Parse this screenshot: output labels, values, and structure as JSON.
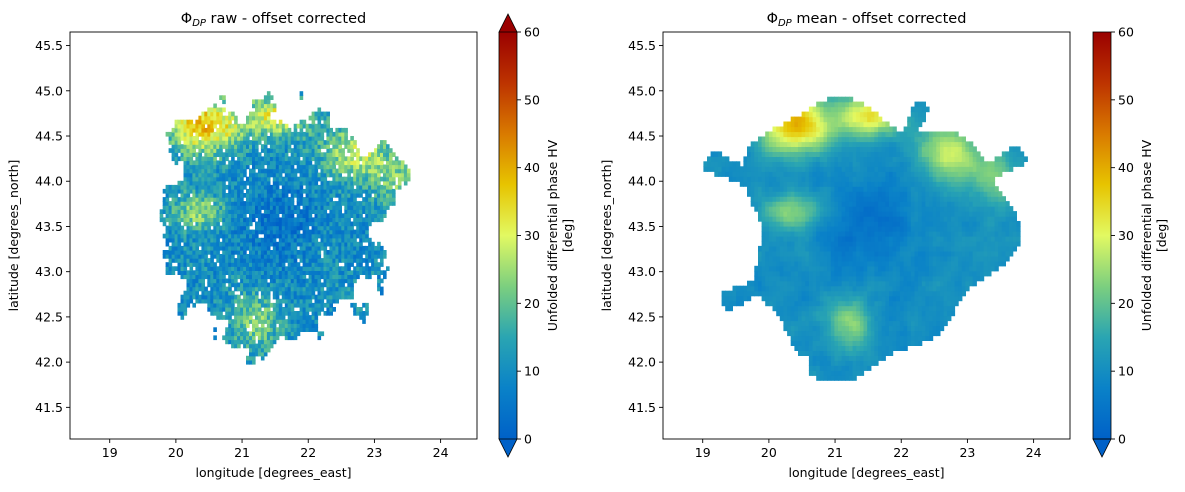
{
  "chart_data": [
    {
      "type": "heatmap",
      "title": {
        "prefix": "Φ",
        "sub": "DP",
        "suffix": " raw - offset corrected"
      },
      "xlabel": "longitude [degrees_east]",
      "ylabel": "latitude [degrees_north]",
      "xlim": [
        18.4,
        24.55
      ],
      "ylim": [
        41.15,
        45.65
      ],
      "xticks": [
        19,
        20,
        21,
        22,
        23,
        24
      ],
      "yticks": [
        41.5,
        42.0,
        42.5,
        43.0,
        43.5,
        44.0,
        44.5,
        45.0,
        45.5
      ],
      "colorbar": {
        "label_line1": "Unfolded differential phase HV",
        "label_line2": "[deg]",
        "ticks": [
          0,
          10,
          20,
          30,
          40,
          50,
          60
        ],
        "range": [
          0,
          60
        ],
        "extend": "both"
      },
      "radar_center": [
        21.5,
        43.4
      ]
    },
    {
      "type": "heatmap",
      "title": {
        "prefix": "Φ",
        "sub": "DP",
        "suffix": " mean - offset corrected"
      },
      "xlabel": "longitude [degrees_east]",
      "ylabel": "latitude [degrees_north]",
      "xlim": [
        18.4,
        24.55
      ],
      "ylim": [
        41.15,
        45.65
      ],
      "xticks": [
        19,
        20,
        21,
        22,
        23,
        24
      ],
      "yticks": [
        41.5,
        42.0,
        42.5,
        43.0,
        43.5,
        44.0,
        44.5,
        45.0,
        45.5
      ],
      "colorbar": {
        "label_line1": "Unfolded differential phase HV",
        "label_line2": "[deg]",
        "ticks": [
          0,
          10,
          20,
          30,
          40,
          50,
          60
        ],
        "range": [
          0,
          60
        ],
        "extend": "min"
      },
      "radar_center": [
        21.5,
        43.4
      ]
    }
  ],
  "colormap": [
    "#0061c8",
    "#0a82c8",
    "#2aa5b2",
    "#7ccf7f",
    "#e2f962",
    "#e7c400",
    "#d97a00",
    "#bd3300",
    "#9a0000"
  ]
}
